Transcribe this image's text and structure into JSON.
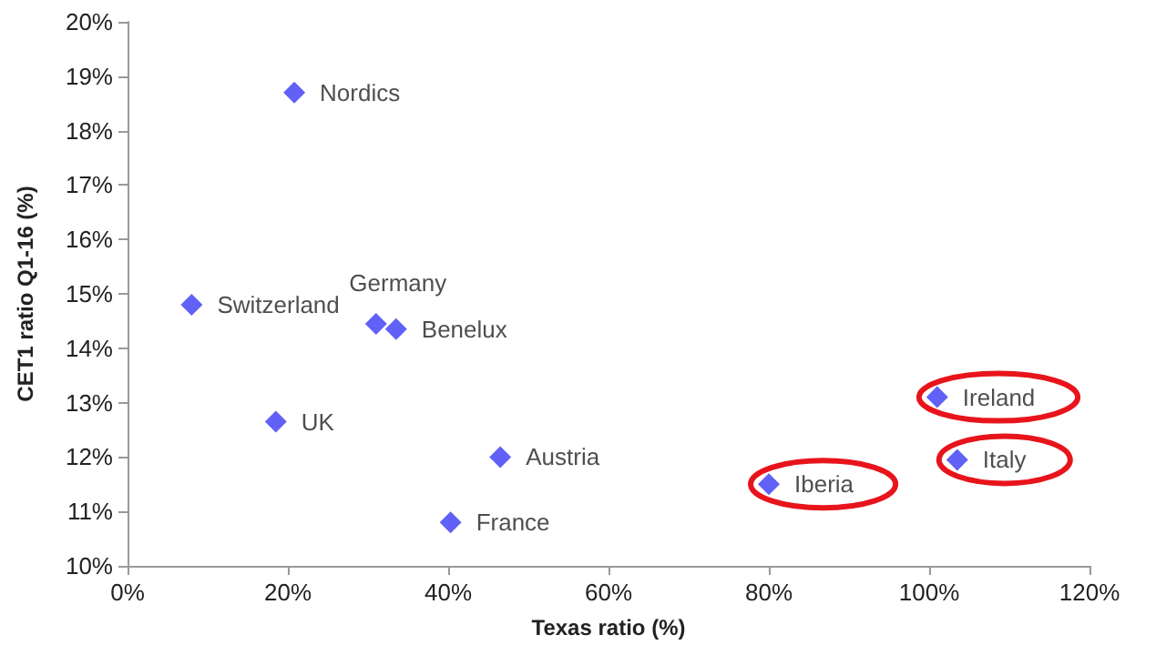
{
  "chart_data": {
    "type": "scatter",
    "xlabel": "Texas ratio (%)",
    "ylabel": "CET1 ratio Q1-16 (%)",
    "series": [
      {
        "color": "#3a3af5",
        "marker": "diamond",
        "x": [
          20.8,
          8,
          31,
          33.5,
          18.5,
          46.5,
          40.3,
          80,
          101,
          103.5
        ],
        "values": [
          18.7,
          14.8,
          14.45,
          14.35,
          12.65,
          12.0,
          10.8,
          11.5,
          13.1,
          11.95
        ]
      }
    ],
    "grid": false,
    "xlim": [
      0,
      120
    ],
    "xticks": [
      {
        "value": 0,
        "label": "0%"
      },
      {
        "value": 20,
        "label": "20%"
      },
      {
        "value": 40,
        "label": "40%"
      },
      {
        "value": 60,
        "label": "60%"
      },
      {
        "value": 80,
        "label": "80%"
      },
      {
        "value": 100,
        "label": "100%"
      },
      {
        "value": 120,
        "label": "120%"
      }
    ],
    "ylim": [
      10,
      20
    ],
    "yticks": [
      {
        "value": 10,
        "label": "10%"
      },
      {
        "value": 11,
        "label": "11%"
      },
      {
        "value": 12,
        "label": "12%"
      },
      {
        "value": 13,
        "label": "13%"
      },
      {
        "value": 14,
        "label": "14%"
      },
      {
        "value": 15,
        "label": "15%"
      },
      {
        "value": 16,
        "label": "16%"
      },
      {
        "value": 17,
        "label": "17%"
      },
      {
        "value": 18,
        "label": "18%"
      },
      {
        "value": 19,
        "label": "19%"
      },
      {
        "value": 20,
        "label": "20%"
      }
    ],
    "annotations": [
      {
        "text": "Nordics",
        "x": 20.8,
        "y": 18.7
      },
      {
        "text": "Switzerland",
        "x": 8,
        "y": 14.8
      },
      {
        "text": "Germany",
        "x": 31,
        "y": 14.45
      },
      {
        "text": "Benelux",
        "x": 33.5,
        "y": 14.35
      },
      {
        "text": "UK",
        "x": 18.5,
        "y": 12.65
      },
      {
        "text": "Austria",
        "x": 46.5,
        "y": 12.0
      },
      {
        "text": "France",
        "x": 40.3,
        "y": 10.8
      },
      {
        "text": "Iberia",
        "x": 80,
        "y": 11.5
      },
      {
        "text": "Ireland",
        "x": 101,
        "y": 13.1
      },
      {
        "text": "Italy",
        "x": 103.5,
        "y": 11.95
      }
    ]
  }
}
